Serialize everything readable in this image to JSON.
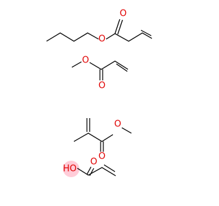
{
  "molecules": [
    {
      "labels": [
        "O",
        "O"
      ]
    },
    {
      "labels": [
        "O",
        "O"
      ]
    },
    {
      "labels": [
        "O",
        "O"
      ]
    },
    {
      "labels": [
        "O",
        "HO"
      ]
    }
  ]
}
